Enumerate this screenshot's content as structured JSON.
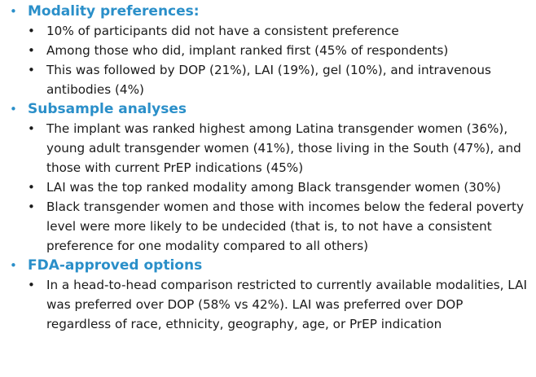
{
  "sections": [
    {
      "title": "Modality preferences:",
      "items": [
        "10% of participants did not have a consistent preference",
        "Among those who did, implant ranked first (45% of respondents)",
        "This was followed by DOP (21%), LAI (19%), gel (10%), and intravenous antibodies (4%)"
      ]
    },
    {
      "title": "Subsample analyses",
      "items": [
        "The implant was ranked highest among Latina transgender women (36%), young adult transgender women (41%), those living in the South (47%), and those with current PrEP indications (45%)",
        "LAI was the top ranked modality among Black transgender women (30%)",
        "Black transgender women and those with incomes below the federal poverty level were more likely to be undecided (that is, to not have a consistent preference for one modality compared to all others)"
      ]
    },
    {
      "title": "FDA-approved options",
      "items": [
        "In a head-to-head comparison restricted to currently available modalities, LAI was preferred over DOP (58% vs 42%). LAI was preferred over DOP regardless of race, ethnicity, geography, age, or PrEP indication"
      ]
    }
  ]
}
